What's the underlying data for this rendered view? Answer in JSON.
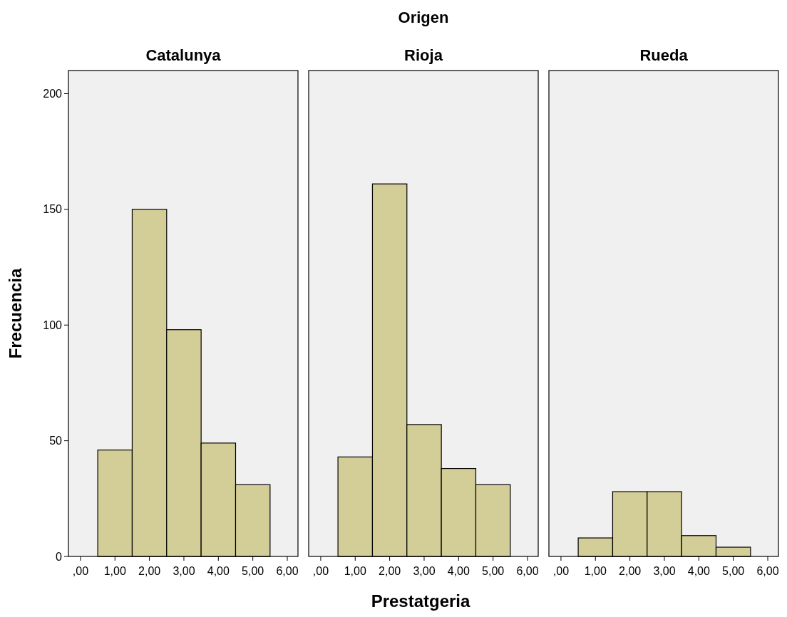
{
  "chart_data": [
    {
      "type": "histogram",
      "title": "Catalunya",
      "ylabel": "Frecuencia",
      "bins": [
        0.5,
        1.5,
        2.5,
        3.5,
        4.5,
        5.5
      ],
      "values": [
        46,
        150,
        98,
        49,
        31
      ],
      "color": "#d3ce97",
      "xlim": [
        -0.35,
        6.31
      ],
      "ylim": [
        0,
        210
      ],
      "xticks": [
        {
          "value": 0,
          "label": ",00"
        },
        {
          "value": 1,
          "label": "1,00"
        },
        {
          "value": 2,
          "label": "2,00"
        },
        {
          "value": 3,
          "label": "3,00"
        },
        {
          "value": 4,
          "label": "4,00"
        },
        {
          "value": 5,
          "label": "5,00"
        },
        {
          "value": 6,
          "label": "6,00"
        }
      ],
      "yticks": [
        0,
        50,
        100,
        150,
        200
      ]
    },
    {
      "type": "histogram",
      "title": "Rioja",
      "xlabel": "Prestatgeria",
      "annotations": [
        "Origen"
      ],
      "bins": [
        0.5,
        1.5,
        2.5,
        3.5,
        4.5,
        5.5
      ],
      "values": [
        43,
        161,
        57,
        38,
        31
      ],
      "color": "#d3ce97",
      "xlim": [
        -0.35,
        6.31
      ],
      "ylim": [
        0,
        210
      ],
      "xticks": [
        {
          "value": 0,
          "label": ",00"
        },
        {
          "value": 1,
          "label": "1,00"
        },
        {
          "value": 2,
          "label": "2,00"
        },
        {
          "value": 3,
          "label": "3,00"
        },
        {
          "value": 4,
          "label": "4,00"
        },
        {
          "value": 5,
          "label": "5,00"
        },
        {
          "value": 6,
          "label": "6,00"
        }
      ],
      "tick_labels": "x"
    },
    {
      "type": "histogram",
      "title": "Rueda",
      "bins": [
        0.5,
        1.5,
        2.5,
        3.5,
        4.5,
        5.5
      ],
      "values": [
        8,
        28,
        28,
        9,
        4
      ],
      "color": "#d3ce97",
      "xlim": [
        -0.35,
        6.31
      ],
      "ylim": [
        0,
        210
      ],
      "xticks": [
        {
          "value": 0,
          "label": ",00"
        },
        {
          "value": 1,
          "label": "1,00"
        },
        {
          "value": 2,
          "label": "2,00"
        },
        {
          "value": 3,
          "label": "3,00"
        },
        {
          "value": 4,
          "label": "4,00"
        },
        {
          "value": 5,
          "label": "5,00"
        },
        {
          "value": 6,
          "label": "6,00"
        }
      ],
      "tick_labels": "x"
    }
  ]
}
